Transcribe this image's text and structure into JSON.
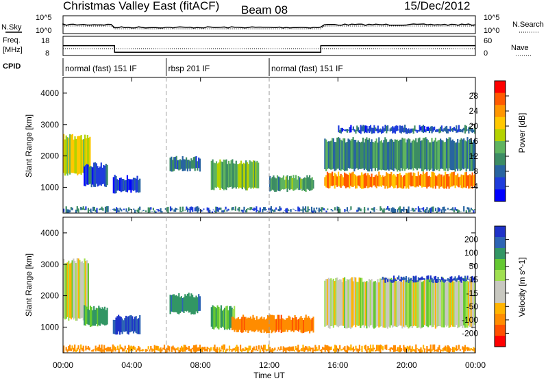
{
  "header": {
    "title": "Christmas Valley East (fitACF)",
    "beam": "Beam 08",
    "date": "15/Dec/2012"
  },
  "top_panels": {
    "nsky_label": "N.Sky",
    "nsearch_label": "N.Search",
    "freq_label_line1": "Freq.",
    "freq_label_line2": "[MHz]",
    "nave_label": "Nave",
    "cpid_label": "CPID",
    "noise_ticks_left": [
      "10^5",
      "10^0"
    ],
    "noise_ticks_right": [
      "10^5",
      "10^0"
    ],
    "freq_ticks_left": [
      "18",
      "8"
    ],
    "freq_ticks_right": [
      "60",
      "0"
    ],
    "cpid_segments": [
      {
        "label": "normal (fast) 151 IF",
        "start": 0,
        "end": 6
      },
      {
        "label": "rbsp 201 IF",
        "start": 6,
        "end": 12
      },
      {
        "label": "normal (fast) 151 IF",
        "start": 12,
        "end": 24
      }
    ],
    "freq_steps": [
      {
        "start": 0,
        "end": 3,
        "value": 14
      },
      {
        "start": 3,
        "end": 15,
        "value": 10
      },
      {
        "start": 15,
        "end": 24,
        "value": 14
      }
    ]
  },
  "chart_data": [
    {
      "type": "heatmap",
      "name": "power",
      "xlabel": "Time UT",
      "ylabel": "Slant Range [km]",
      "xlim": [
        0,
        24
      ],
      "ylim": [
        180,
        4500
      ],
      "yticks": [
        1000,
        2000,
        3000,
        4000
      ],
      "xticks": [
        "00:00",
        "04:00",
        "08:00",
        "12:00",
        "16:00",
        "20:00",
        "00:00"
      ],
      "colorbar_label": "Power [dB]",
      "colorbar_ticks": [
        "28",
        "24",
        "20",
        "16",
        "12",
        "8",
        "4"
      ],
      "colorbar_colors": [
        "#ff0000",
        "#ff5a00",
        "#ff9600",
        "#ffc800",
        "#b4d200",
        "#5fb45f",
        "#3c8c64",
        "#2864a0",
        "#1e3cdc",
        "#0000ff"
      ],
      "echo_regions": [
        {
          "t0": 0.0,
          "t1": 1.6,
          "r0": 1350,
          "r1": 2700,
          "power": 20
        },
        {
          "t0": 1.2,
          "t1": 2.6,
          "r0": 1000,
          "r1": 1800,
          "power": 8
        },
        {
          "t0": 2.9,
          "t1": 4.5,
          "r0": 800,
          "r1": 1400,
          "power": 6
        },
        {
          "t0": 6.2,
          "t1": 8.0,
          "r0": 1500,
          "r1": 2000,
          "power": 10
        },
        {
          "t0": 8.6,
          "t1": 11.4,
          "r0": 900,
          "r1": 1900,
          "power": 16
        },
        {
          "t0": 12.0,
          "t1": 14.6,
          "r0": 850,
          "r1": 1400,
          "power": 14
        },
        {
          "t0": 15.2,
          "t1": 24.0,
          "r0": 950,
          "r1": 1500,
          "power": 26
        },
        {
          "t0": 15.2,
          "t1": 24.0,
          "r0": 1500,
          "r1": 2600,
          "power": 12
        },
        {
          "t0": 16.0,
          "t1": 24.0,
          "r0": 2700,
          "r1": 3000,
          "power": 8
        },
        {
          "t0": 0.0,
          "t1": 24.0,
          "r0": 180,
          "r1": 400,
          "power": 10
        }
      ]
    },
    {
      "type": "heatmap",
      "name": "velocity",
      "xlabel": "Time UT",
      "ylabel": "Slant Range [km]",
      "xlim": [
        0,
        24
      ],
      "ylim": [
        180,
        4500
      ],
      "yticks": [
        1000,
        2000,
        3000,
        4000
      ],
      "xticks": [
        "00:00",
        "04:00",
        "08:00",
        "12:00",
        "16:00",
        "20:00",
        "00:00"
      ],
      "colorbar_label": "Velocity [m s^-1]",
      "colorbar_ticks": [
        "200",
        "100",
        "50",
        "15",
        "-15",
        "-50",
        "-100",
        "-200"
      ],
      "colorbar_colors": [
        "#1e32c8",
        "#2d64b4",
        "#329664",
        "#64c832",
        "#a0e050",
        "#c8c8c0",
        "#c8c8c0",
        "#ffb400",
        "#ff8c00",
        "#ff5000",
        "#ff0000"
      ],
      "echo_regions": [
        {
          "t0": 0.0,
          "t1": 1.5,
          "r0": 1200,
          "r1": 3200,
          "velocity": 0
        },
        {
          "t0": 1.2,
          "t1": 2.6,
          "r0": 1000,
          "r1": 1700,
          "velocity": 40
        },
        {
          "t0": 2.9,
          "t1": 4.5,
          "r0": 750,
          "r1": 1400,
          "velocity": 150
        },
        {
          "t0": 6.2,
          "t1": 8.0,
          "r0": 1400,
          "r1": 2100,
          "velocity": 60
        },
        {
          "t0": 8.6,
          "t1": 10.0,
          "r0": 900,
          "r1": 1700,
          "velocity": 30
        },
        {
          "t0": 9.8,
          "t1": 14.6,
          "r0": 800,
          "r1": 1400,
          "velocity": -60
        },
        {
          "t0": 15.2,
          "t1": 24.0,
          "r0": 950,
          "r1": 2600,
          "velocity": 0
        },
        {
          "t0": 18.5,
          "t1": 24.0,
          "r0": 2400,
          "r1": 2650,
          "velocity": 150
        },
        {
          "t0": 0.0,
          "t1": 24.0,
          "r0": 180,
          "r1": 450,
          "velocity": -40
        }
      ]
    }
  ]
}
